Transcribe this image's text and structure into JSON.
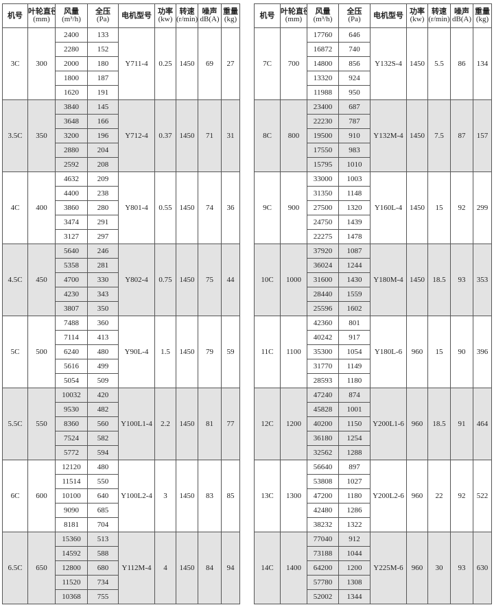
{
  "headers": [
    {
      "zh": "机号",
      "unit": ""
    },
    {
      "zh": "叶轮直径",
      "unit": "(mm)"
    },
    {
      "zh": "风量",
      "unit": "(m³/h)"
    },
    {
      "zh": "全压",
      "unit": "(Pa)"
    },
    {
      "zh": "电机型号",
      "unit": ""
    },
    {
      "zh": "功率",
      "unit": "(kw)"
    },
    {
      "zh": "转速",
      "unit": "(r/min)"
    },
    {
      "zh": "噪声",
      "unit": "dB(A)"
    },
    {
      "zh": "重量",
      "unit": "(kg)"
    }
  ],
  "colors": {
    "shade": "#e3e3e3",
    "border": "#555555"
  },
  "left_table": [
    {
      "model": "3C",
      "diameter": "300",
      "flow": [
        "2400",
        "2280",
        "2000",
        "1800",
        "1620"
      ],
      "pressure": [
        "133",
        "152",
        "180",
        "187",
        "191"
      ],
      "motor": "Y711-4",
      "power": "0.25",
      "speed": "1450",
      "noise": "69",
      "weight": "27"
    },
    {
      "model": "3.5C",
      "diameter": "350",
      "flow": [
        "3840",
        "3648",
        "3200",
        "2880",
        "2592"
      ],
      "pressure": [
        "145",
        "166",
        "196",
        "204",
        "208"
      ],
      "motor": "Y712-4",
      "power": "0.37",
      "speed": "1450",
      "noise": "71",
      "weight": "31"
    },
    {
      "model": "4C",
      "diameter": "400",
      "flow": [
        "4632",
        "4400",
        "3860",
        "3474",
        "3127"
      ],
      "pressure": [
        "209",
        "238",
        "280",
        "291",
        "297"
      ],
      "motor": "Y801-4",
      "power": "0.55",
      "speed": "1450",
      "noise": "74",
      "weight": "36"
    },
    {
      "model": "4.5C",
      "diameter": "450",
      "flow": [
        "5640",
        "5358",
        "4700",
        "4230",
        "3807"
      ],
      "pressure": [
        "246",
        "281",
        "330",
        "343",
        "350"
      ],
      "motor": "Y802-4",
      "power": "0.75",
      "speed": "1450",
      "noise": "75",
      "weight": "44"
    },
    {
      "model": "5C",
      "diameter": "500",
      "flow": [
        "7488",
        "7114",
        "6240",
        "5616",
        "5054"
      ],
      "pressure": [
        "360",
        "413",
        "480",
        "499",
        "509"
      ],
      "motor": "Y90L-4",
      "power": "1.5",
      "speed": "1450",
      "noise": "79",
      "weight": "59"
    },
    {
      "model": "5.5C",
      "diameter": "550",
      "flow": [
        "10032",
        "9530",
        "8360",
        "7524",
        "5772"
      ],
      "pressure": [
        "420",
        "482",
        "560",
        "582",
        "594"
      ],
      "motor": "Y100L1-4",
      "power": "2.2",
      "speed": "1450",
      "noise": "81",
      "weight": "77"
    },
    {
      "model": "6C",
      "diameter": "600",
      "flow": [
        "12120",
        "11514",
        "10100",
        "9090",
        "8181"
      ],
      "pressure": [
        "480",
        "550",
        "640",
        "685",
        "704"
      ],
      "motor": "Y100L2-4",
      "power": "3",
      "speed": "1450",
      "noise": "83",
      "weight": "85"
    },
    {
      "model": "6.5C",
      "diameter": "650",
      "flow": [
        "15360",
        "14592",
        "12800",
        "11520",
        "10368"
      ],
      "pressure": [
        "513",
        "588",
        "680",
        "734",
        "755"
      ],
      "motor": "Y112M-4",
      "power": "4",
      "speed": "1450",
      "noise": "84",
      "weight": "94"
    }
  ],
  "right_table": [
    {
      "model": "7C",
      "diameter": "700",
      "flow": [
        "17760",
        "16872",
        "14800",
        "13320",
        "11988"
      ],
      "pressure": [
        "646",
        "740",
        "856",
        "924",
        "950"
      ],
      "motor": "Y132S-4",
      "power": "1450",
      "speed": "5.5",
      "noise": "86",
      "weight": "134"
    },
    {
      "model": "8C",
      "diameter": "800",
      "flow": [
        "23400",
        "22230",
        "19500",
        "17550",
        "15795"
      ],
      "pressure": [
        "687",
        "787",
        "910",
        "983",
        "1010"
      ],
      "motor": "Y132M-4",
      "power": "1450",
      "speed": "7.5",
      "noise": "87",
      "weight": "157"
    },
    {
      "model": "9C",
      "diameter": "900",
      "flow": [
        "33000",
        "31350",
        "27500",
        "24750",
        "22275"
      ],
      "pressure": [
        "1003",
        "1148",
        "1320",
        "1439",
        "1478"
      ],
      "motor": "Y160L-4",
      "power": "1450",
      "speed": "15",
      "noise": "92",
      "weight": "299"
    },
    {
      "model": "10C",
      "diameter": "1000",
      "flow": [
        "37920",
        "36024",
        "31600",
        "28440",
        "25596"
      ],
      "pressure": [
        "1087",
        "1244",
        "1430",
        "1559",
        "1602"
      ],
      "motor": "Y180M-4",
      "power": "1450",
      "speed": "18.5",
      "noise": "93",
      "weight": "353"
    },
    {
      "model": "11C",
      "diameter": "1100",
      "flow": [
        "42360",
        "40242",
        "35300",
        "31770",
        "28593"
      ],
      "pressure": [
        "801",
        "917",
        "1054",
        "1149",
        "1180"
      ],
      "motor": "Y180L-6",
      "power": "960",
      "speed": "15",
      "noise": "90",
      "weight": "396"
    },
    {
      "model": "12C",
      "diameter": "1200",
      "flow": [
        "47240",
        "45828",
        "40200",
        "36180",
        "32562"
      ],
      "pressure": [
        "874",
        "1001",
        "1150",
        "1254",
        "1288"
      ],
      "motor": "Y200L1-6",
      "power": "960",
      "speed": "18.5",
      "noise": "91",
      "weight": "464"
    },
    {
      "model": "13C",
      "diameter": "1300",
      "flow": [
        "56640",
        "53808",
        "47200",
        "42480",
        "38232"
      ],
      "pressure": [
        "897",
        "1027",
        "1180",
        "1286",
        "1322"
      ],
      "motor": "Y200L2-6",
      "power": "960",
      "speed": "22",
      "noise": "92",
      "weight": "522"
    },
    {
      "model": "14C",
      "diameter": "1400",
      "flow": [
        "77040",
        "73188",
        "64200",
        "57780",
        "52002"
      ],
      "pressure": [
        "912",
        "1044",
        "1200",
        "1308",
        "1344"
      ],
      "motor": "Y225M-6",
      "power": "960",
      "speed": "30",
      "noise": "93",
      "weight": "630"
    }
  ]
}
